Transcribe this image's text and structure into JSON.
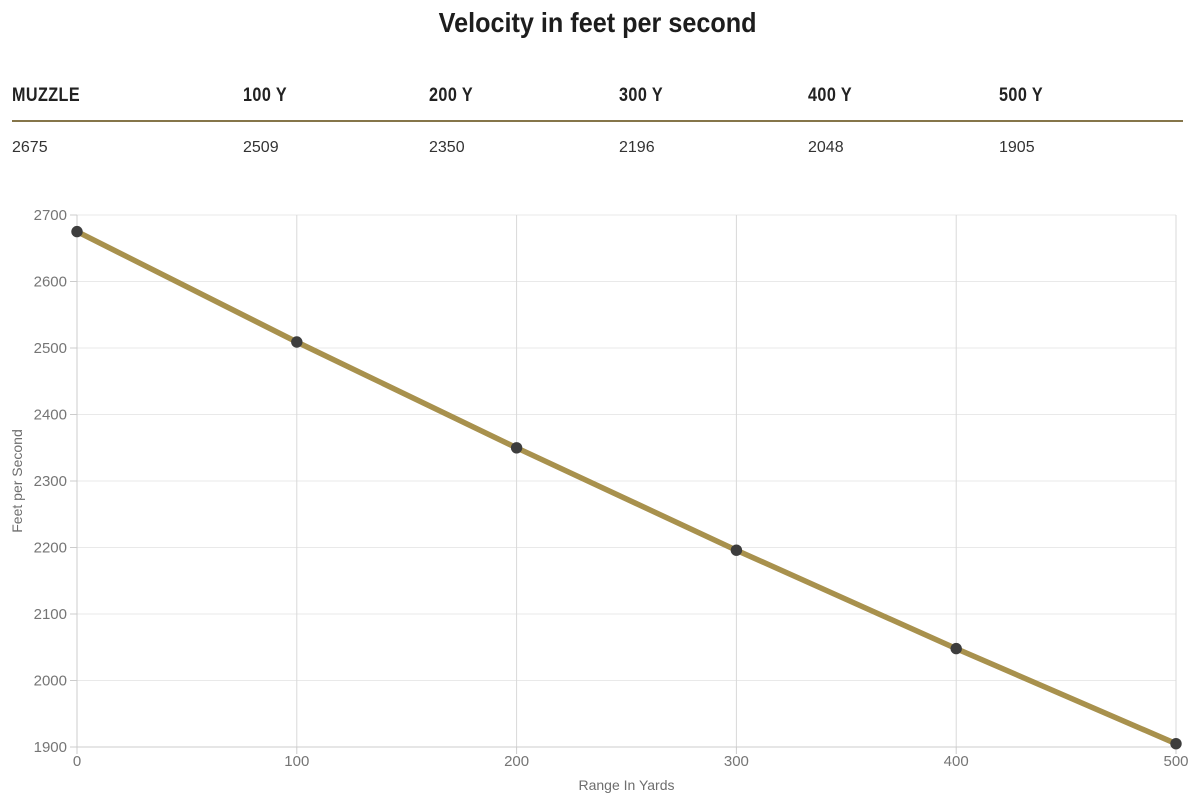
{
  "page": {
    "title": "Velocity in feet per second"
  },
  "table": {
    "columns": [
      {
        "label": "MUZZLE",
        "value": "2675"
      },
      {
        "label": "100 Y",
        "value": "2509"
      },
      {
        "label": "200 Y",
        "value": "2350"
      },
      {
        "label": "300 Y",
        "value": "2196"
      },
      {
        "label": "400 Y",
        "value": "2048"
      },
      {
        "label": "500 Y",
        "value": "1905"
      }
    ]
  },
  "chart_data": {
    "type": "line",
    "title": "Velocity in feet per second",
    "x": [
      0,
      100,
      200,
      300,
      400,
      500
    ],
    "series": [
      {
        "name": "Velocity",
        "values": [
          2675,
          2509,
          2350,
          2196,
          2048,
          1905
        ]
      }
    ],
    "xlabel": "Range In Yards",
    "ylabel": "Feet per Second",
    "xlim": [
      0,
      500
    ],
    "ylim": [
      1900,
      2700
    ],
    "x_ticks": [
      0,
      100,
      200,
      300,
      400,
      500
    ],
    "y_ticks": [
      1900,
      2000,
      2100,
      2200,
      2300,
      2400,
      2500,
      2600,
      2700
    ],
    "grid": true,
    "legend": "none",
    "line_color": "#a8914d",
    "marker_color": "#3d3d3d",
    "v_grid_color": "#d9d9d9",
    "h_grid_color": "#e9e9e9",
    "axis_color": "#cccccc",
    "tick_label_color": "#757575",
    "axis_title_color": "#6e6e6e"
  },
  "colors": {
    "accent_gold": "#a8914d",
    "table_divider": "#85754a",
    "title_text": "#1d1d1d",
    "header_text": "#222222",
    "value_text": "#333333"
  }
}
